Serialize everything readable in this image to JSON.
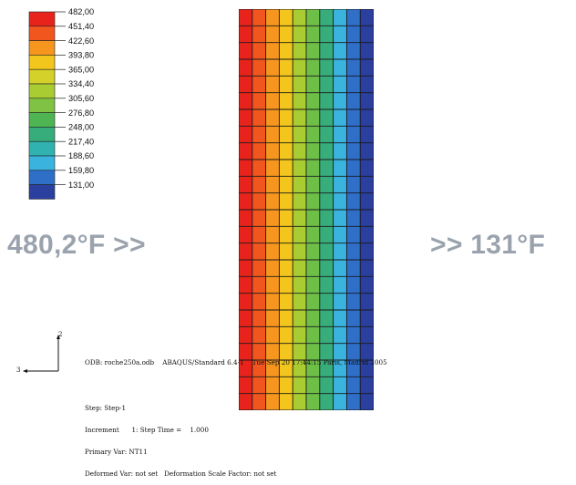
{
  "legend": {
    "values": [
      "482,00",
      "451,40",
      "422,60",
      "393,80",
      "365,00",
      "334,40",
      "305,60",
      "276,80",
      "248,00",
      "217,40",
      "188,60",
      "159,80",
      "131,00"
    ],
    "colors": [
      "#e8231c",
      "#f2561f",
      "#f7961e",
      "#f2c61c",
      "#d4d12a",
      "#a9cc32",
      "#7fc244",
      "#4fb552",
      "#38ad7c",
      "#30b3b0",
      "#3ab3df",
      "#2f6fc8",
      "#2b3f9e"
    ]
  },
  "mesh": {
    "column_colors": [
      "#e8231c",
      "#f2561f",
      "#f7961e",
      "#f2c61c",
      "#a9cc32",
      "#6dbf48",
      "#38ad7c",
      "#3ab3df",
      "#2f6fc8",
      "#2b3f9e"
    ],
    "rows": 24
  },
  "labels": {
    "left": "480,2°F >>",
    "right": ">> 131°F"
  },
  "triad": {
    "axis_vertical": "2",
    "axis_horizontal": "3"
  },
  "info": {
    "line1": "ODB: roche250a.odb    ABAQUS/Standard 6.4-1    Tue Sep 20 17:44:15 Paris, Madrid 2005",
    "line2": "Step: Step-1",
    "line3": "Increment      1: Step Time =    1.000",
    "line4": "Primary Var: NT11",
    "line5": "Deformed Var: not set   Deformation Scale Factor: not set"
  }
}
